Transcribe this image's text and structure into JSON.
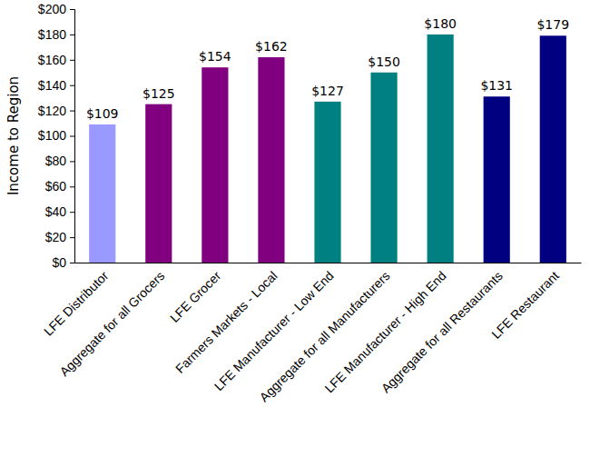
{
  "chart_data": {
    "type": "bar",
    "y_label": "Income to Region",
    "categories": [
      "LFE Distributor",
      "Aggregate for all Grocers",
      "LFE Grocer",
      "Farmers Markets - Local",
      "LFE Manufacturer - Low End",
      "Aggregate for all Manufacturers",
      "LFE Manufacturer - High End",
      "Aggregate for all Restaurants",
      "LFE Restaurant"
    ],
    "values": [
      109,
      125,
      154,
      162,
      127,
      150,
      180,
      131,
      179
    ],
    "value_labels": [
      "$109",
      "$125",
      "$154",
      "$162",
      "$127",
      "$150",
      "$180",
      "$131",
      "$179"
    ],
    "colors": [
      "#9999ff",
      "#800080",
      "#800080",
      "#800080",
      "#008080",
      "#008080",
      "#008080",
      "#000080",
      "#000080"
    ],
    "data_labels": true,
    "grid": false,
    "ylim": [
      0,
      200
    ],
    "yticks": [
      {
        "value": 0,
        "label": "$0"
      },
      {
        "value": 20,
        "label": "$20"
      },
      {
        "value": 40,
        "label": "$40"
      },
      {
        "value": 60,
        "label": "$60"
      },
      {
        "value": 80,
        "label": "$80"
      },
      {
        "value": 100,
        "label": "$100"
      },
      {
        "value": 120,
        "label": "$120"
      },
      {
        "value": 140,
        "label": "$140"
      },
      {
        "value": 160,
        "label": "$160"
      },
      {
        "value": 180,
        "label": "$180"
      },
      {
        "value": 200,
        "label": "$200"
      }
    ]
  }
}
